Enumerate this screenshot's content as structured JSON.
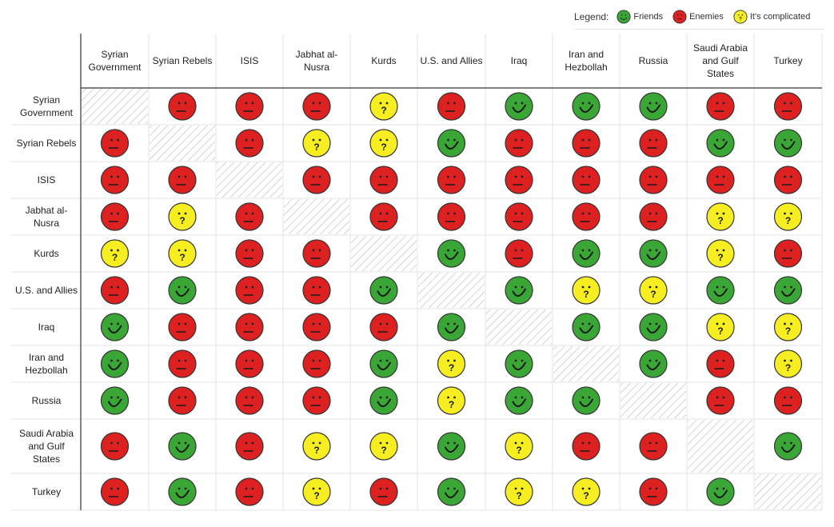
{
  "legend": {
    "title": "Legend:",
    "items": [
      {
        "key": "friend",
        "label": "Friends"
      },
      {
        "key": "enemy",
        "label": "Enemies"
      },
      {
        "key": "complicated",
        "label": "It's complicated"
      }
    ]
  },
  "colors": {
    "friend": "#3aa636",
    "enemy": "#dd2121",
    "complicated": "#f7ee22",
    "outline": "#333333",
    "grid": "#e3e3e3",
    "hatch": "#bdbdbd"
  },
  "chart_data": {
    "type": "table",
    "title": "",
    "columns": [
      [
        "Syrian",
        "Government"
      ],
      [
        "Syrian Rebels"
      ],
      [
        "ISIS"
      ],
      [
        "Jabhat al-",
        "Nusra"
      ],
      [
        "Kurds"
      ],
      [
        "U.S. and Allies"
      ],
      [
        "Iraq"
      ],
      [
        "Iran and",
        "Hezbollah"
      ],
      [
        "Russia"
      ],
      [
        "Saudi Arabia",
        "and Gulf",
        "States"
      ],
      [
        "Turkey"
      ]
    ],
    "rows": [
      [
        "Syrian",
        "Government"
      ],
      [
        "Syrian Rebels"
      ],
      [
        "ISIS"
      ],
      [
        "Jabhat al-",
        "Nusra"
      ],
      [
        "Kurds"
      ],
      [
        "U.S. and Allies"
      ],
      [
        "Iraq"
      ],
      [
        "Iran and",
        "Hezbollah"
      ],
      [
        "Russia"
      ],
      [
        "Saudi Arabia",
        "and Gulf",
        "States"
      ],
      [
        "Turkey"
      ]
    ],
    "relations": [
      [
        "none",
        "enemy",
        "enemy",
        "enemy",
        "complicated",
        "enemy",
        "friend",
        "friend",
        "friend",
        "enemy",
        "enemy"
      ],
      [
        "enemy",
        "none",
        "enemy",
        "complicated",
        "complicated",
        "friend",
        "enemy",
        "enemy",
        "enemy",
        "friend",
        "friend"
      ],
      [
        "enemy",
        "enemy",
        "none",
        "enemy",
        "enemy",
        "enemy",
        "enemy",
        "enemy",
        "enemy",
        "enemy",
        "enemy"
      ],
      [
        "enemy",
        "complicated",
        "enemy",
        "none",
        "enemy",
        "enemy",
        "enemy",
        "enemy",
        "enemy",
        "complicated",
        "complicated"
      ],
      [
        "complicated",
        "complicated",
        "enemy",
        "enemy",
        "none",
        "friend",
        "enemy",
        "friend",
        "friend",
        "complicated",
        "enemy"
      ],
      [
        "enemy",
        "friend",
        "enemy",
        "enemy",
        "friend",
        "none",
        "friend",
        "complicated",
        "complicated",
        "friend",
        "friend"
      ],
      [
        "friend",
        "enemy",
        "enemy",
        "enemy",
        "enemy",
        "friend",
        "none",
        "friend",
        "friend",
        "complicated",
        "complicated"
      ],
      [
        "friend",
        "enemy",
        "enemy",
        "enemy",
        "friend",
        "complicated",
        "friend",
        "none",
        "friend",
        "enemy",
        "complicated"
      ],
      [
        "friend",
        "enemy",
        "enemy",
        "enemy",
        "friend",
        "complicated",
        "friend",
        "friend",
        "none",
        "enemy",
        "enemy"
      ],
      [
        "enemy",
        "friend",
        "enemy",
        "complicated",
        "complicated",
        "friend",
        "complicated",
        "enemy",
        "enemy",
        "none",
        "friend"
      ],
      [
        "enemy",
        "friend",
        "enemy",
        "complicated",
        "enemy",
        "friend",
        "complicated",
        "complicated",
        "enemy",
        "friend",
        "none"
      ]
    ]
  }
}
